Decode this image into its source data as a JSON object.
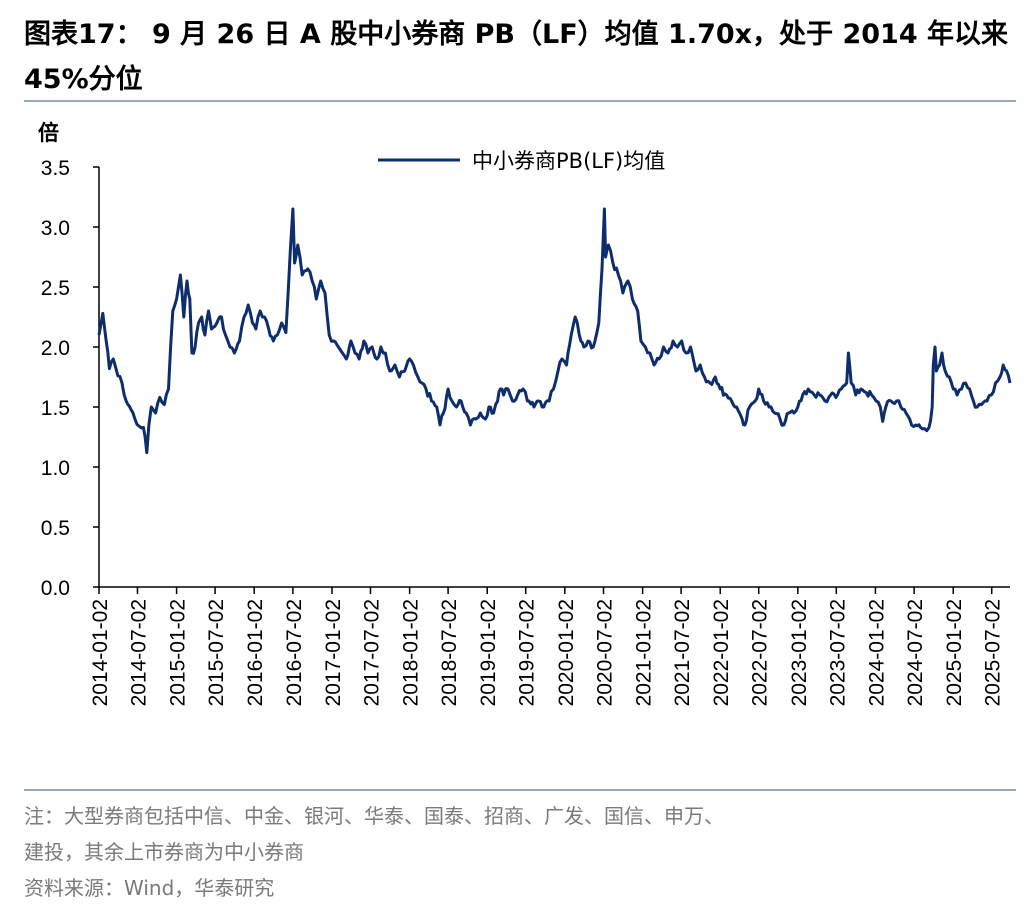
{
  "header": {
    "title": "图表17：  9 月  26 日  A 股中小券商  PB（LF）均值  1.70x，处于  2014 年以来 45%分位"
  },
  "footer": {
    "note_line1": "注：大型券商包括中信、中金、银河、华泰、国泰、招商、广发、国信、申万、",
    "note_line2": "建投，其余上市券商为中小券商",
    "source": "资料来源：Wind，华泰研究"
  },
  "colors": {
    "series": "#0d2d6c",
    "axis": "#000000",
    "rule": "#9aa9bf",
    "note": "#7a7a7a"
  },
  "chart_data": {
    "type": "line",
    "title": "",
    "ylabel": "倍",
    "xlabel": "",
    "ylim": [
      0.0,
      3.5
    ],
    "yticks": [
      "0.0",
      "0.5",
      "1.0",
      "1.5",
      "2.0",
      "2.5",
      "3.0",
      "3.5"
    ],
    "grid": false,
    "legend_position": "top-center",
    "xticks": [
      "2014-01-02",
      "2014-07-02",
      "2015-01-02",
      "2015-07-02",
      "2016-01-02",
      "2016-07-02",
      "2017-01-02",
      "2017-07-02",
      "2018-01-02",
      "2018-07-02",
      "2019-01-02",
      "2019-07-02",
      "2020-01-02",
      "2020-07-02",
      "2021-01-02",
      "2021-07-02",
      "2022-01-02",
      "2022-07-02",
      "2023-01-02",
      "2023-07-02",
      "2024-01-02",
      "2024-07-02",
      "2025-01-02",
      "2025-07-02"
    ],
    "x_range": [
      "2014-01-02",
      "2025-09-26"
    ],
    "series": [
      {
        "name": "中小券商PB(LF)均值",
        "points": [
          [
            "2014-01-02",
            2.1
          ],
          [
            "2014-01-20",
            2.28
          ],
          [
            "2014-02-05",
            2.05
          ],
          [
            "2014-02-20",
            1.82
          ],
          [
            "2014-03-10",
            1.9
          ],
          [
            "2014-04-01",
            1.76
          ],
          [
            "2014-04-20",
            1.7
          ],
          [
            "2014-05-10",
            1.55
          ],
          [
            "2014-06-01",
            1.48
          ],
          [
            "2014-06-20",
            1.4
          ],
          [
            "2014-07-10",
            1.34
          ],
          [
            "2014-07-30",
            1.33
          ],
          [
            "2014-08-15",
            1.12
          ],
          [
            "2014-08-25",
            1.36
          ],
          [
            "2014-09-05",
            1.5
          ],
          [
            "2014-09-25",
            1.45
          ],
          [
            "2014-10-15",
            1.58
          ],
          [
            "2014-11-05",
            1.52
          ],
          [
            "2014-11-25",
            1.65
          ],
          [
            "2014-12-05",
            2.0
          ],
          [
            "2014-12-15",
            2.3
          ],
          [
            "2015-01-02",
            2.4
          ],
          [
            "2015-01-20",
            2.6
          ],
          [
            "2015-02-05",
            2.25
          ],
          [
            "2015-02-20",
            2.55
          ],
          [
            "2015-03-05",
            2.4
          ],
          [
            "2015-03-15",
            1.95
          ],
          [
            "2015-03-30",
            2.0
          ],
          [
            "2015-04-15",
            2.2
          ],
          [
            "2015-04-30",
            2.25
          ],
          [
            "2015-05-15",
            2.1
          ],
          [
            "2015-06-01",
            2.3
          ],
          [
            "2015-06-15",
            2.15
          ],
          [
            "2015-07-10",
            2.2
          ],
          [
            "2015-08-01",
            2.25
          ],
          [
            "2015-08-20",
            2.1
          ],
          [
            "2015-09-10",
            2.0
          ],
          [
            "2015-10-01",
            1.95
          ],
          [
            "2015-10-25",
            2.05
          ],
          [
            "2015-11-15",
            2.25
          ],
          [
            "2015-12-05",
            2.35
          ],
          [
            "2015-12-25",
            2.2
          ],
          [
            "2016-01-10",
            2.15
          ],
          [
            "2016-01-30",
            2.3
          ],
          [
            "2016-02-20",
            2.25
          ],
          [
            "2016-03-10",
            2.15
          ],
          [
            "2016-04-01",
            2.05
          ],
          [
            "2016-04-20",
            2.1
          ],
          [
            "2016-05-10",
            2.2
          ],
          [
            "2016-05-30",
            2.12
          ],
          [
            "2016-06-20",
            2.8
          ],
          [
            "2016-07-02",
            3.15
          ],
          [
            "2016-07-10",
            2.7
          ],
          [
            "2016-07-25",
            2.85
          ],
          [
            "2016-08-15",
            2.6
          ],
          [
            "2016-09-10",
            2.65
          ],
          [
            "2016-10-01",
            2.55
          ],
          [
            "2016-10-20",
            2.4
          ],
          [
            "2016-11-10",
            2.55
          ],
          [
            "2016-11-30",
            2.45
          ],
          [
            "2016-12-20",
            2.1
          ],
          [
            "2017-01-10",
            2.05
          ],
          [
            "2017-02-01",
            2.0
          ],
          [
            "2017-02-20",
            1.95
          ],
          [
            "2017-03-10",
            1.9
          ],
          [
            "2017-04-01",
            2.05
          ],
          [
            "2017-04-20",
            1.95
          ],
          [
            "2017-05-10",
            1.9
          ],
          [
            "2017-06-01",
            2.05
          ],
          [
            "2017-06-20",
            1.95
          ],
          [
            "2017-07-10",
            2.0
          ],
          [
            "2017-08-01",
            1.9
          ],
          [
            "2017-08-20",
            2.0
          ],
          [
            "2017-09-10",
            1.95
          ],
          [
            "2017-10-01",
            1.8
          ],
          [
            "2017-10-25",
            1.85
          ],
          [
            "2017-11-15",
            1.75
          ],
          [
            "2017-12-10",
            1.8
          ],
          [
            "2018-01-02",
            1.9
          ],
          [
            "2018-01-20",
            1.85
          ],
          [
            "2018-02-10",
            1.75
          ],
          [
            "2018-03-01",
            1.7
          ],
          [
            "2018-03-20",
            1.65
          ],
          [
            "2018-04-15",
            1.55
          ],
          [
            "2018-05-10",
            1.5
          ],
          [
            "2018-05-25",
            1.35
          ],
          [
            "2018-06-10",
            1.45
          ],
          [
            "2018-07-02",
            1.65
          ],
          [
            "2018-07-20",
            1.55
          ],
          [
            "2018-08-10",
            1.5
          ],
          [
            "2018-09-01",
            1.55
          ],
          [
            "2018-09-25",
            1.45
          ],
          [
            "2018-10-15",
            1.35
          ],
          [
            "2018-11-10",
            1.4
          ],
          [
            "2018-12-01",
            1.45
          ],
          [
            "2018-12-25",
            1.4
          ],
          [
            "2019-01-10",
            1.5
          ],
          [
            "2019-02-01",
            1.45
          ],
          [
            "2019-02-20",
            1.55
          ],
          [
            "2019-03-05",
            1.65
          ],
          [
            "2019-03-20",
            1.6
          ],
          [
            "2019-04-10",
            1.65
          ],
          [
            "2019-05-01",
            1.55
          ],
          [
            "2019-05-25",
            1.6
          ],
          [
            "2019-06-20",
            1.65
          ],
          [
            "2019-07-10",
            1.55
          ],
          [
            "2019-08-10",
            1.5
          ],
          [
            "2019-09-01",
            1.55
          ],
          [
            "2019-09-25",
            1.5
          ],
          [
            "2019-10-20",
            1.55
          ],
          [
            "2019-11-10",
            1.65
          ],
          [
            "2019-12-01",
            1.8
          ],
          [
            "2019-12-20",
            1.9
          ],
          [
            "2020-01-10",
            1.85
          ],
          [
            "2020-02-01",
            2.1
          ],
          [
            "2020-02-20",
            2.25
          ],
          [
            "2020-03-10",
            2.1
          ],
          [
            "2020-04-01",
            2.0
          ],
          [
            "2020-04-20",
            2.05
          ],
          [
            "2020-05-15",
            2.0
          ],
          [
            "2020-06-10",
            2.2
          ],
          [
            "2020-06-25",
            2.65
          ],
          [
            "2020-07-06",
            3.15
          ],
          [
            "2020-07-12",
            2.75
          ],
          [
            "2020-07-25",
            2.85
          ],
          [
            "2020-08-15",
            2.7
          ],
          [
            "2020-09-10",
            2.6
          ],
          [
            "2020-10-01",
            2.45
          ],
          [
            "2020-10-25",
            2.55
          ],
          [
            "2020-11-15",
            2.4
          ],
          [
            "2020-12-10",
            2.3
          ],
          [
            "2020-12-25",
            2.05
          ],
          [
            "2021-01-15",
            2.0
          ],
          [
            "2021-02-05",
            1.95
          ],
          [
            "2021-02-25",
            1.85
          ],
          [
            "2021-03-20",
            1.9
          ],
          [
            "2021-04-10",
            2.0
          ],
          [
            "2021-05-01",
            1.95
          ],
          [
            "2021-05-25",
            2.05
          ],
          [
            "2021-06-15",
            2.0
          ],
          [
            "2021-07-05",
            2.05
          ],
          [
            "2021-07-25",
            1.95
          ],
          [
            "2021-08-15",
            2.0
          ],
          [
            "2021-09-10",
            1.8
          ],
          [
            "2021-09-30",
            1.85
          ],
          [
            "2021-10-20",
            1.75
          ],
          [
            "2021-11-15",
            1.7
          ],
          [
            "2021-12-10",
            1.75
          ],
          [
            "2022-01-02",
            1.65
          ],
          [
            "2022-02-01",
            1.6
          ],
          [
            "2022-02-25",
            1.55
          ],
          [
            "2022-03-20",
            1.5
          ],
          [
            "2022-04-15",
            1.4
          ],
          [
            "2022-04-28",
            1.35
          ],
          [
            "2022-05-20",
            1.5
          ],
          [
            "2022-06-15",
            1.55
          ],
          [
            "2022-07-02",
            1.65
          ],
          [
            "2022-07-25",
            1.55
          ],
          [
            "2022-08-20",
            1.5
          ],
          [
            "2022-09-15",
            1.45
          ],
          [
            "2022-10-10",
            1.4
          ],
          [
            "2022-10-28",
            1.35
          ],
          [
            "2022-11-20",
            1.45
          ],
          [
            "2022-12-15",
            1.45
          ],
          [
            "2023-01-02",
            1.5
          ],
          [
            "2023-01-25",
            1.6
          ],
          [
            "2023-02-20",
            1.65
          ],
          [
            "2023-03-20",
            1.6
          ],
          [
            "2023-04-15",
            1.6
          ],
          [
            "2023-05-10",
            1.55
          ],
          [
            "2023-06-05",
            1.6
          ],
          [
            "2023-06-30",
            1.58
          ],
          [
            "2023-07-25",
            1.65
          ],
          [
            "2023-08-20",
            1.7
          ],
          [
            "2023-08-28",
            1.95
          ],
          [
            "2023-09-10",
            1.7
          ],
          [
            "2023-10-01",
            1.6
          ],
          [
            "2023-10-25",
            1.65
          ],
          [
            "2023-11-20",
            1.62
          ],
          [
            "2023-12-15",
            1.6
          ],
          [
            "2024-01-05",
            1.55
          ],
          [
            "2024-01-25",
            1.5
          ],
          [
            "2024-02-05",
            1.38
          ],
          [
            "2024-02-20",
            1.5
          ],
          [
            "2024-03-15",
            1.55
          ],
          [
            "2024-04-10",
            1.55
          ],
          [
            "2024-05-01",
            1.5
          ],
          [
            "2024-05-25",
            1.45
          ],
          [
            "2024-06-20",
            1.35
          ],
          [
            "2024-07-10",
            1.35
          ],
          [
            "2024-08-01",
            1.33
          ],
          [
            "2024-08-20",
            1.32
          ],
          [
            "2024-09-10",
            1.33
          ],
          [
            "2024-09-25",
            1.5
          ],
          [
            "2024-09-30",
            1.85
          ],
          [
            "2024-10-08",
            2.0
          ],
          [
            "2024-10-15",
            1.8
          ],
          [
            "2024-10-30",
            1.85
          ],
          [
            "2024-11-10",
            1.95
          ],
          [
            "2024-11-25",
            1.8
          ],
          [
            "2024-12-15",
            1.75
          ],
          [
            "2025-01-02",
            1.65
          ],
          [
            "2025-01-20",
            1.6
          ],
          [
            "2025-02-10",
            1.65
          ],
          [
            "2025-03-01",
            1.7
          ],
          [
            "2025-03-20",
            1.65
          ],
          [
            "2025-04-07",
            1.55
          ],
          [
            "2025-04-25",
            1.5
          ],
          [
            "2025-05-15",
            1.52
          ],
          [
            "2025-06-10",
            1.55
          ],
          [
            "2025-06-30",
            1.6
          ],
          [
            "2025-07-20",
            1.7
          ],
          [
            "2025-08-10",
            1.75
          ],
          [
            "2025-08-25",
            1.85
          ],
          [
            "2025-09-10",
            1.8
          ],
          [
            "2025-09-26",
            1.7
          ]
        ]
      }
    ]
  }
}
